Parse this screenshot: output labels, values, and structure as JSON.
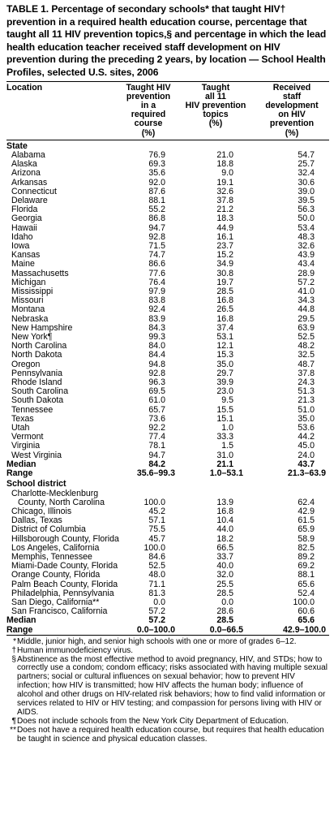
{
  "title": "TABLE 1. Percentage of secondary schools* that taught HIV† prevention in a required health education course, percentage that taught all 11 HIV prevention topics,§ and percentage in which the lead health education teacher received staff development on HIV prevention during the preceding 2 years, by location — School Health Profiles, selected U.S. sites, 2006",
  "headers": {
    "location": "Location",
    "col1": [
      "Taught HIV",
      "prevention",
      "in a",
      "required",
      "course",
      "(%)"
    ],
    "col2": [
      "Taught",
      "all 11",
      "HIV prevention",
      "topics",
      "(%)"
    ],
    "col3": [
      "Received",
      "staff",
      "development",
      "on HIV",
      "prevention",
      "(%)"
    ]
  },
  "state_section": "State",
  "states": [
    {
      "name": "Alabama",
      "c1": "76.9",
      "c2": "21.0",
      "c3": "54.7"
    },
    {
      "name": "Alaska",
      "c1": "69.3",
      "c2": "18.8",
      "c3": "25.7"
    },
    {
      "name": "Arizona",
      "c1": "35.6",
      "c2": "9.0",
      "c3": "32.4"
    },
    {
      "name": "Arkansas",
      "c1": "92.0",
      "c2": "19.1",
      "c3": "30.6"
    },
    {
      "name": "Connecticut",
      "c1": "87.6",
      "c2": "32.6",
      "c3": "39.0"
    },
    {
      "name": "Delaware",
      "c1": "88.1",
      "c2": "37.8",
      "c3": "39.5"
    },
    {
      "name": "Florida",
      "c1": "55.2",
      "c2": "21.2",
      "c3": "56.3"
    },
    {
      "name": "Georgia",
      "c1": "86.8",
      "c2": "18.3",
      "c3": "50.0"
    },
    {
      "name": "Hawaii",
      "c1": "94.7",
      "c2": "44.9",
      "c3": "53.4"
    },
    {
      "name": "Idaho",
      "c1": "92.8",
      "c2": "16.1",
      "c3": "48.3"
    },
    {
      "name": "Iowa",
      "c1": "71.5",
      "c2": "23.7",
      "c3": "32.6"
    },
    {
      "name": "Kansas",
      "c1": "74.7",
      "c2": "15.2",
      "c3": "43.9"
    },
    {
      "name": "Maine",
      "c1": "86.6",
      "c2": "34.9",
      "c3": "43.4"
    },
    {
      "name": "Massachusetts",
      "c1": "77.6",
      "c2": "30.8",
      "c3": "28.9"
    },
    {
      "name": "Michigan",
      "c1": "76.4",
      "c2": "19.7",
      "c3": "57.2"
    },
    {
      "name": "Mississippi",
      "c1": "97.9",
      "c2": "28.5",
      "c3": "41.0"
    },
    {
      "name": "Missouri",
      "c1": "83.8",
      "c2": "16.8",
      "c3": "34.3"
    },
    {
      "name": "Montana",
      "c1": "92.4",
      "c2": "26.5",
      "c3": "44.8"
    },
    {
      "name": "Nebraska",
      "c1": "83.9",
      "c2": "16.8",
      "c3": "29.5"
    },
    {
      "name": "New Hampshire",
      "c1": "84.3",
      "c2": "37.4",
      "c3": "63.9"
    },
    {
      "name": "New York¶",
      "c1": "99.3",
      "c2": "53.1",
      "c3": "52.5"
    },
    {
      "name": "North Carolina",
      "c1": "84.0",
      "c2": "12.1",
      "c3": "48.2"
    },
    {
      "name": "North Dakota",
      "c1": "84.4",
      "c2": "15.3",
      "c3": "32.5"
    },
    {
      "name": "Oregon",
      "c1": "94.8",
      "c2": "35.0",
      "c3": "48.7"
    },
    {
      "name": "Pennsylvania",
      "c1": "92.8",
      "c2": "29.7",
      "c3": "37.8"
    },
    {
      "name": "Rhode Island",
      "c1": "96.3",
      "c2": "39.9",
      "c3": "24.3"
    },
    {
      "name": "South Carolina",
      "c1": "69.5",
      "c2": "23.0",
      "c3": "51.3"
    },
    {
      "name": "South Dakota",
      "c1": "61.0",
      "c2": "9.5",
      "c3": "21.3"
    },
    {
      "name": "Tennessee",
      "c1": "65.7",
      "c2": "15.5",
      "c3": "51.0"
    },
    {
      "name": "Texas",
      "c1": "73.6",
      "c2": "15.1",
      "c3": "35.0"
    },
    {
      "name": "Utah",
      "c1": "92.2",
      "c2": "1.0",
      "c3": "53.6"
    },
    {
      "name": "Vermont",
      "c1": "77.4",
      "c2": "33.3",
      "c3": "44.2"
    },
    {
      "name": "Virginia",
      "c1": "78.1",
      "c2": "1.5",
      "c3": "45.0"
    },
    {
      "name": "West Virginia",
      "c1": "94.7",
      "c2": "31.0",
      "c3": "24.0"
    }
  ],
  "state_median": {
    "label": "Median",
    "c1": "84.2",
    "c2": "21.1",
    "c3": "43.7"
  },
  "state_range": {
    "label": "Range",
    "c1": "35.6–99.3",
    "c2": "1.0–53.1",
    "c3": "21.3–63.9"
  },
  "district_section": "School district",
  "district_first_line": "Charlotte-Mecklenburg",
  "districts": [
    {
      "name": "County, North Carolina",
      "c1": "100.0",
      "c2": "13.9",
      "c3": "62.4"
    },
    {
      "name": "Chicago, Illinois",
      "c1": "45.2",
      "c2": "16.8",
      "c3": "42.9"
    },
    {
      "name": "Dallas, Texas",
      "c1": "57.1",
      "c2": "10.4",
      "c3": "61.5"
    },
    {
      "name": "District of Columbia",
      "c1": "75.5",
      "c2": "44.0",
      "c3": "65.9"
    },
    {
      "name": "Hillsborough County, Florida",
      "c1": "45.7",
      "c2": "18.2",
      "c3": "58.9"
    },
    {
      "name": "Los Angeles, California",
      "c1": "100.0",
      "c2": "66.5",
      "c3": "82.5"
    },
    {
      "name": "Memphis, Tennessee",
      "c1": "84.6",
      "c2": "33.7",
      "c3": "89.2"
    },
    {
      "name": "Miami-Dade County, Florida",
      "c1": "52.5",
      "c2": "40.0",
      "c3": "69.2"
    },
    {
      "name": "Orange County, Florida",
      "c1": "48.0",
      "c2": "32.0",
      "c3": "88.1"
    },
    {
      "name": "Palm Beach County, Florida",
      "c1": "71.1",
      "c2": "25.5",
      "c3": "65.6"
    },
    {
      "name": "Philadelphia, Pennsylvania",
      "c1": "81.3",
      "c2": "28.5",
      "c3": "52.4"
    },
    {
      "name": "San Diego, California**",
      "c1": "0.0",
      "c2": "0.0",
      "c3": "100.0"
    },
    {
      "name": "San Francisco, California",
      "c1": "57.2",
      "c2": "28.6",
      "c3": "60.6"
    }
  ],
  "district_median": {
    "label": "Median",
    "c1": "57.2",
    "c2": "28.5",
    "c3": "65.6"
  },
  "district_range": {
    "label": "Range",
    "c1": "0.0–100.0",
    "c2": "0.0–66.5",
    "c3": "42.9–100.0"
  },
  "footnotes": [
    {
      "mark": "*",
      "text": "Middle, junior high, and senior high schools with one or more of grades 6–12."
    },
    {
      "mark": "†",
      "text": "Human immunodeficiency virus."
    },
    {
      "mark": "§",
      "text": "Abstinence as the most effective method to avoid pregnancy, HIV, and STDs; how to correctly use a condom; condom efficacy; risks associated with having multiple sexual partners; social or cultural influences on sexual behavior; how to prevent HIV infection; how HIV is transmitted; how HIV affects the human body; influence of alcohol and other drugs on HIV-related risk behaviors; how to find valid information or services related to HIV or HIV testing; and compassion for persons living with HIV or AIDS."
    },
    {
      "mark": "¶",
      "text": "Does not include schools from the New York City Department of Education."
    },
    {
      "mark": "**",
      "text": "Does not have a required health education course, but requires that health education be taught in science and physical education classes."
    }
  ]
}
